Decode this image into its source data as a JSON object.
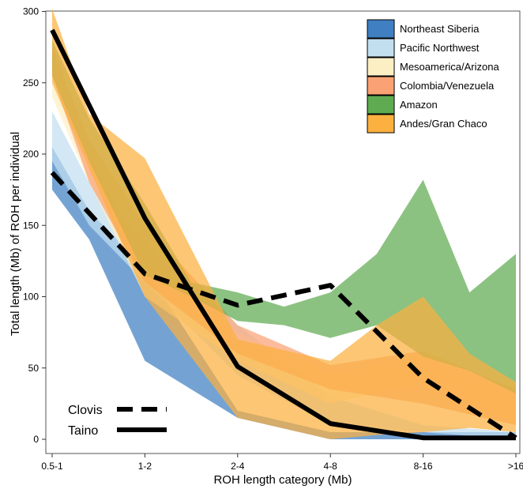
{
  "chart_data": {
    "type": "area",
    "title": "",
    "xlabel": "ROH length category (Mb)",
    "ylabel": "Total length (Mb) of ROH per individual",
    "categories": [
      "0.5-1",
      "1-2",
      "2-4",
      "4-8",
      "8-16",
      ">16"
    ],
    "ylim": [
      0,
      310
    ],
    "yticks": [
      0,
      50,
      100,
      150,
      200,
      250,
      300
    ],
    "grid": false,
    "legend_position": "top-right",
    "bands": [
      {
        "name": "Northeast Siberia",
        "color": "#3f7fc2",
        "x": [
          0,
          0.4,
          1,
          2,
          3,
          4,
          5
        ],
        "upper": [
          205,
          160,
          120,
          20,
          5,
          5,
          5
        ],
        "lower": [
          175,
          140,
          55,
          15,
          0,
          0,
          0
        ]
      },
      {
        "name": "Pacific Northwest",
        "color": "#c2dff0",
        "x": [
          0,
          0.4,
          1,
          2,
          3,
          4,
          5
        ],
        "upper": [
          230,
          180,
          140,
          80,
          30,
          10,
          5
        ],
        "lower": [
          195,
          150,
          110,
          45,
          10,
          5,
          0
        ]
      },
      {
        "name": "Mesoamerica/Arizona",
        "color": "#fdefc4",
        "x": [
          0,
          0.4,
          1,
          2,
          3,
          4,
          5
        ],
        "upper": [
          250,
          195,
          130,
          75,
          45,
          60,
          30
        ],
        "lower": [
          240,
          180,
          100,
          55,
          25,
          40,
          10
        ]
      },
      {
        "name": "Colombia/Venezuela",
        "color": "#fba274",
        "x": [
          0,
          0.4,
          1,
          2,
          3,
          4,
          5
        ],
        "upper": [
          275,
          210,
          150,
          80,
          52,
          62,
          35
        ],
        "lower": [
          255,
          180,
          110,
          60,
          35,
          25,
          10
        ]
      },
      {
        "name": "Amazon",
        "color": "#5fab51",
        "x": [
          0,
          0.4,
          1,
          1.5,
          2,
          2.5,
          3,
          3.5,
          4,
          4.5,
          5
        ],
        "upper": [
          280,
          225,
          165,
          110,
          103,
          93,
          103,
          130,
          182,
          103,
          130
        ],
        "lower": [
          255,
          195,
          115,
          100,
          83,
          80,
          71,
          80,
          58,
          48,
          32
        ]
      },
      {
        "name": "Andes/Gran Chaco",
        "color": "#fbb040",
        "x": [
          0,
          0.4,
          1,
          2,
          3,
          3.5,
          4,
          4.5,
          5
        ],
        "upper": [
          302,
          228,
          197,
          70,
          55,
          80,
          100,
          60,
          40
        ],
        "lower": [
          250,
          190,
          100,
          15,
          0,
          3,
          5,
          8,
          5
        ]
      }
    ],
    "series": [
      {
        "name": "Clovis",
        "style": "dashed",
        "values": [
          187,
          116,
          94,
          108,
          43,
          1
        ]
      },
      {
        "name": "Taino",
        "style": "solid",
        "values": [
          287,
          155,
          51,
          11,
          1,
          1
        ]
      }
    ]
  }
}
